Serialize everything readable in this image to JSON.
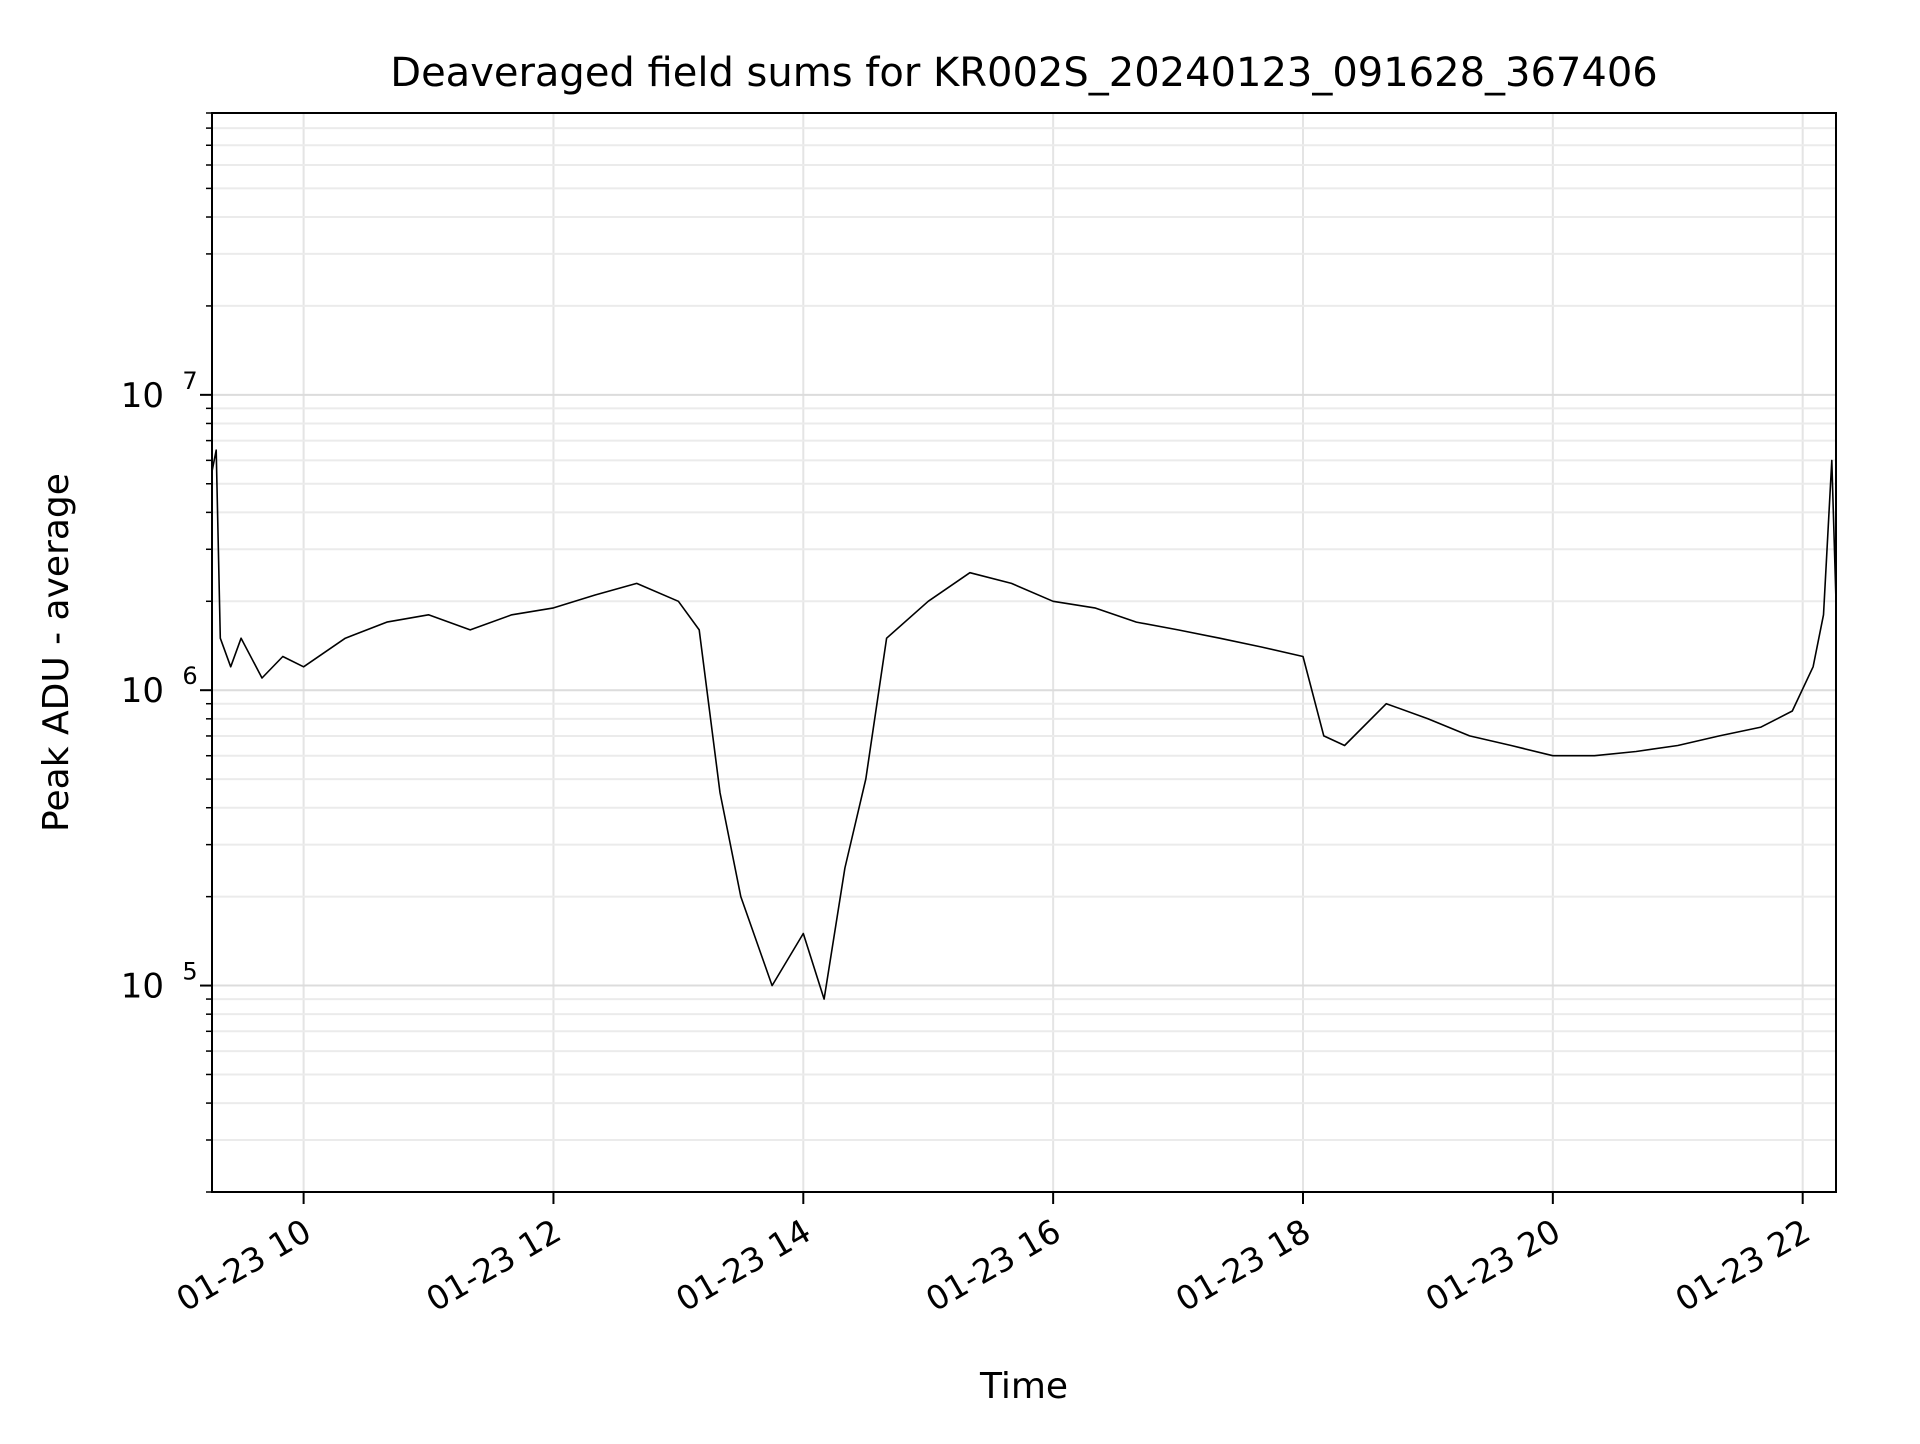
{
  "chart_data": {
    "type": "line",
    "title": "Deaveraged field sums for KR002S_20240123_091628_367406",
    "xlabel": "Time",
    "ylabel": "Peak ADU - average",
    "x_range": [
      "2024-01-23 09:16",
      "2024-01-23 22:16"
    ],
    "ylim": [
      20000,
      90000000
    ],
    "y_scale": "log",
    "grid": true,
    "grid_minor": true,
    "x_ticks": [
      {
        "value": "2024-01-23 10:00",
        "label": "01-23 10"
      },
      {
        "value": "2024-01-23 12:00",
        "label": "01-23 12"
      },
      {
        "value": "2024-01-23 14:00",
        "label": "01-23 14"
      },
      {
        "value": "2024-01-23 16:00",
        "label": "01-23 16"
      },
      {
        "value": "2024-01-23 18:00",
        "label": "01-23 18"
      },
      {
        "value": "2024-01-23 20:00",
        "label": "01-23 20"
      },
      {
        "value": "2024-01-23 22:00",
        "label": "01-23 22"
      }
    ],
    "y_ticks": [
      {
        "value": 100000,
        "base": "10",
        "exp": "5"
      },
      {
        "value": 1000000,
        "base": "10",
        "exp": "6"
      },
      {
        "value": 10000000,
        "base": "10",
        "exp": "7"
      }
    ],
    "line_color": "#000000",
    "series": [
      {
        "x": [
          "2024-01-23 09:16",
          "2024-01-23 09:18",
          "2024-01-23 09:20",
          "2024-01-23 09:25",
          "2024-01-23 09:30",
          "2024-01-23 09:40",
          "2024-01-23 09:50",
          "2024-01-23 10:00",
          "2024-01-23 10:20",
          "2024-01-23 10:40",
          "2024-01-23 11:00",
          "2024-01-23 11:20",
          "2024-01-23 11:40",
          "2024-01-23 12:00",
          "2024-01-23 12:20",
          "2024-01-23 12:40",
          "2024-01-23 13:00",
          "2024-01-23 13:10",
          "2024-01-23 13:20",
          "2024-01-23 13:30",
          "2024-01-23 13:45",
          "2024-01-23 14:00",
          "2024-01-23 14:10",
          "2024-01-23 14:20",
          "2024-01-23 14:30",
          "2024-01-23 14:40",
          "2024-01-23 15:00",
          "2024-01-23 15:20",
          "2024-01-23 15:40",
          "2024-01-23 16:00",
          "2024-01-23 16:20",
          "2024-01-23 16:40",
          "2024-01-23 17:00",
          "2024-01-23 17:20",
          "2024-01-23 17:40",
          "2024-01-23 18:00",
          "2024-01-23 18:10",
          "2024-01-23 18:20",
          "2024-01-23 18:40",
          "2024-01-23 19:00",
          "2024-01-23 19:20",
          "2024-01-23 19:40",
          "2024-01-23 20:00",
          "2024-01-23 20:20",
          "2024-01-23 20:40",
          "2024-01-23 21:00",
          "2024-01-23 21:20",
          "2024-01-23 21:40",
          "2024-01-23 21:55",
          "2024-01-23 22:05",
          "2024-01-23 22:10",
          "2024-01-23 22:14",
          "2024-01-23 22:16"
        ],
        "y": [
          5500000,
          6500000,
          1500000,
          1200000,
          1500000,
          1100000,
          1300000,
          1200000,
          1500000,
          1700000,
          1800000,
          1600000,
          1800000,
          1900000,
          2100000,
          2300000,
          2000000,
          1600000,
          450000,
          200000,
          100000,
          150000,
          90000,
          250000,
          500000,
          1500000,
          2000000,
          2500000,
          2300000,
          2000000,
          1900000,
          1700000,
          1600000,
          1500000,
          1400000,
          1300000,
          700000,
          650000,
          900000,
          800000,
          700000,
          650000,
          600000,
          600000,
          620000,
          650000,
          700000,
          750000,
          850000,
          1200000,
          1800000,
          6000000,
          2000000
        ]
      }
    ]
  }
}
